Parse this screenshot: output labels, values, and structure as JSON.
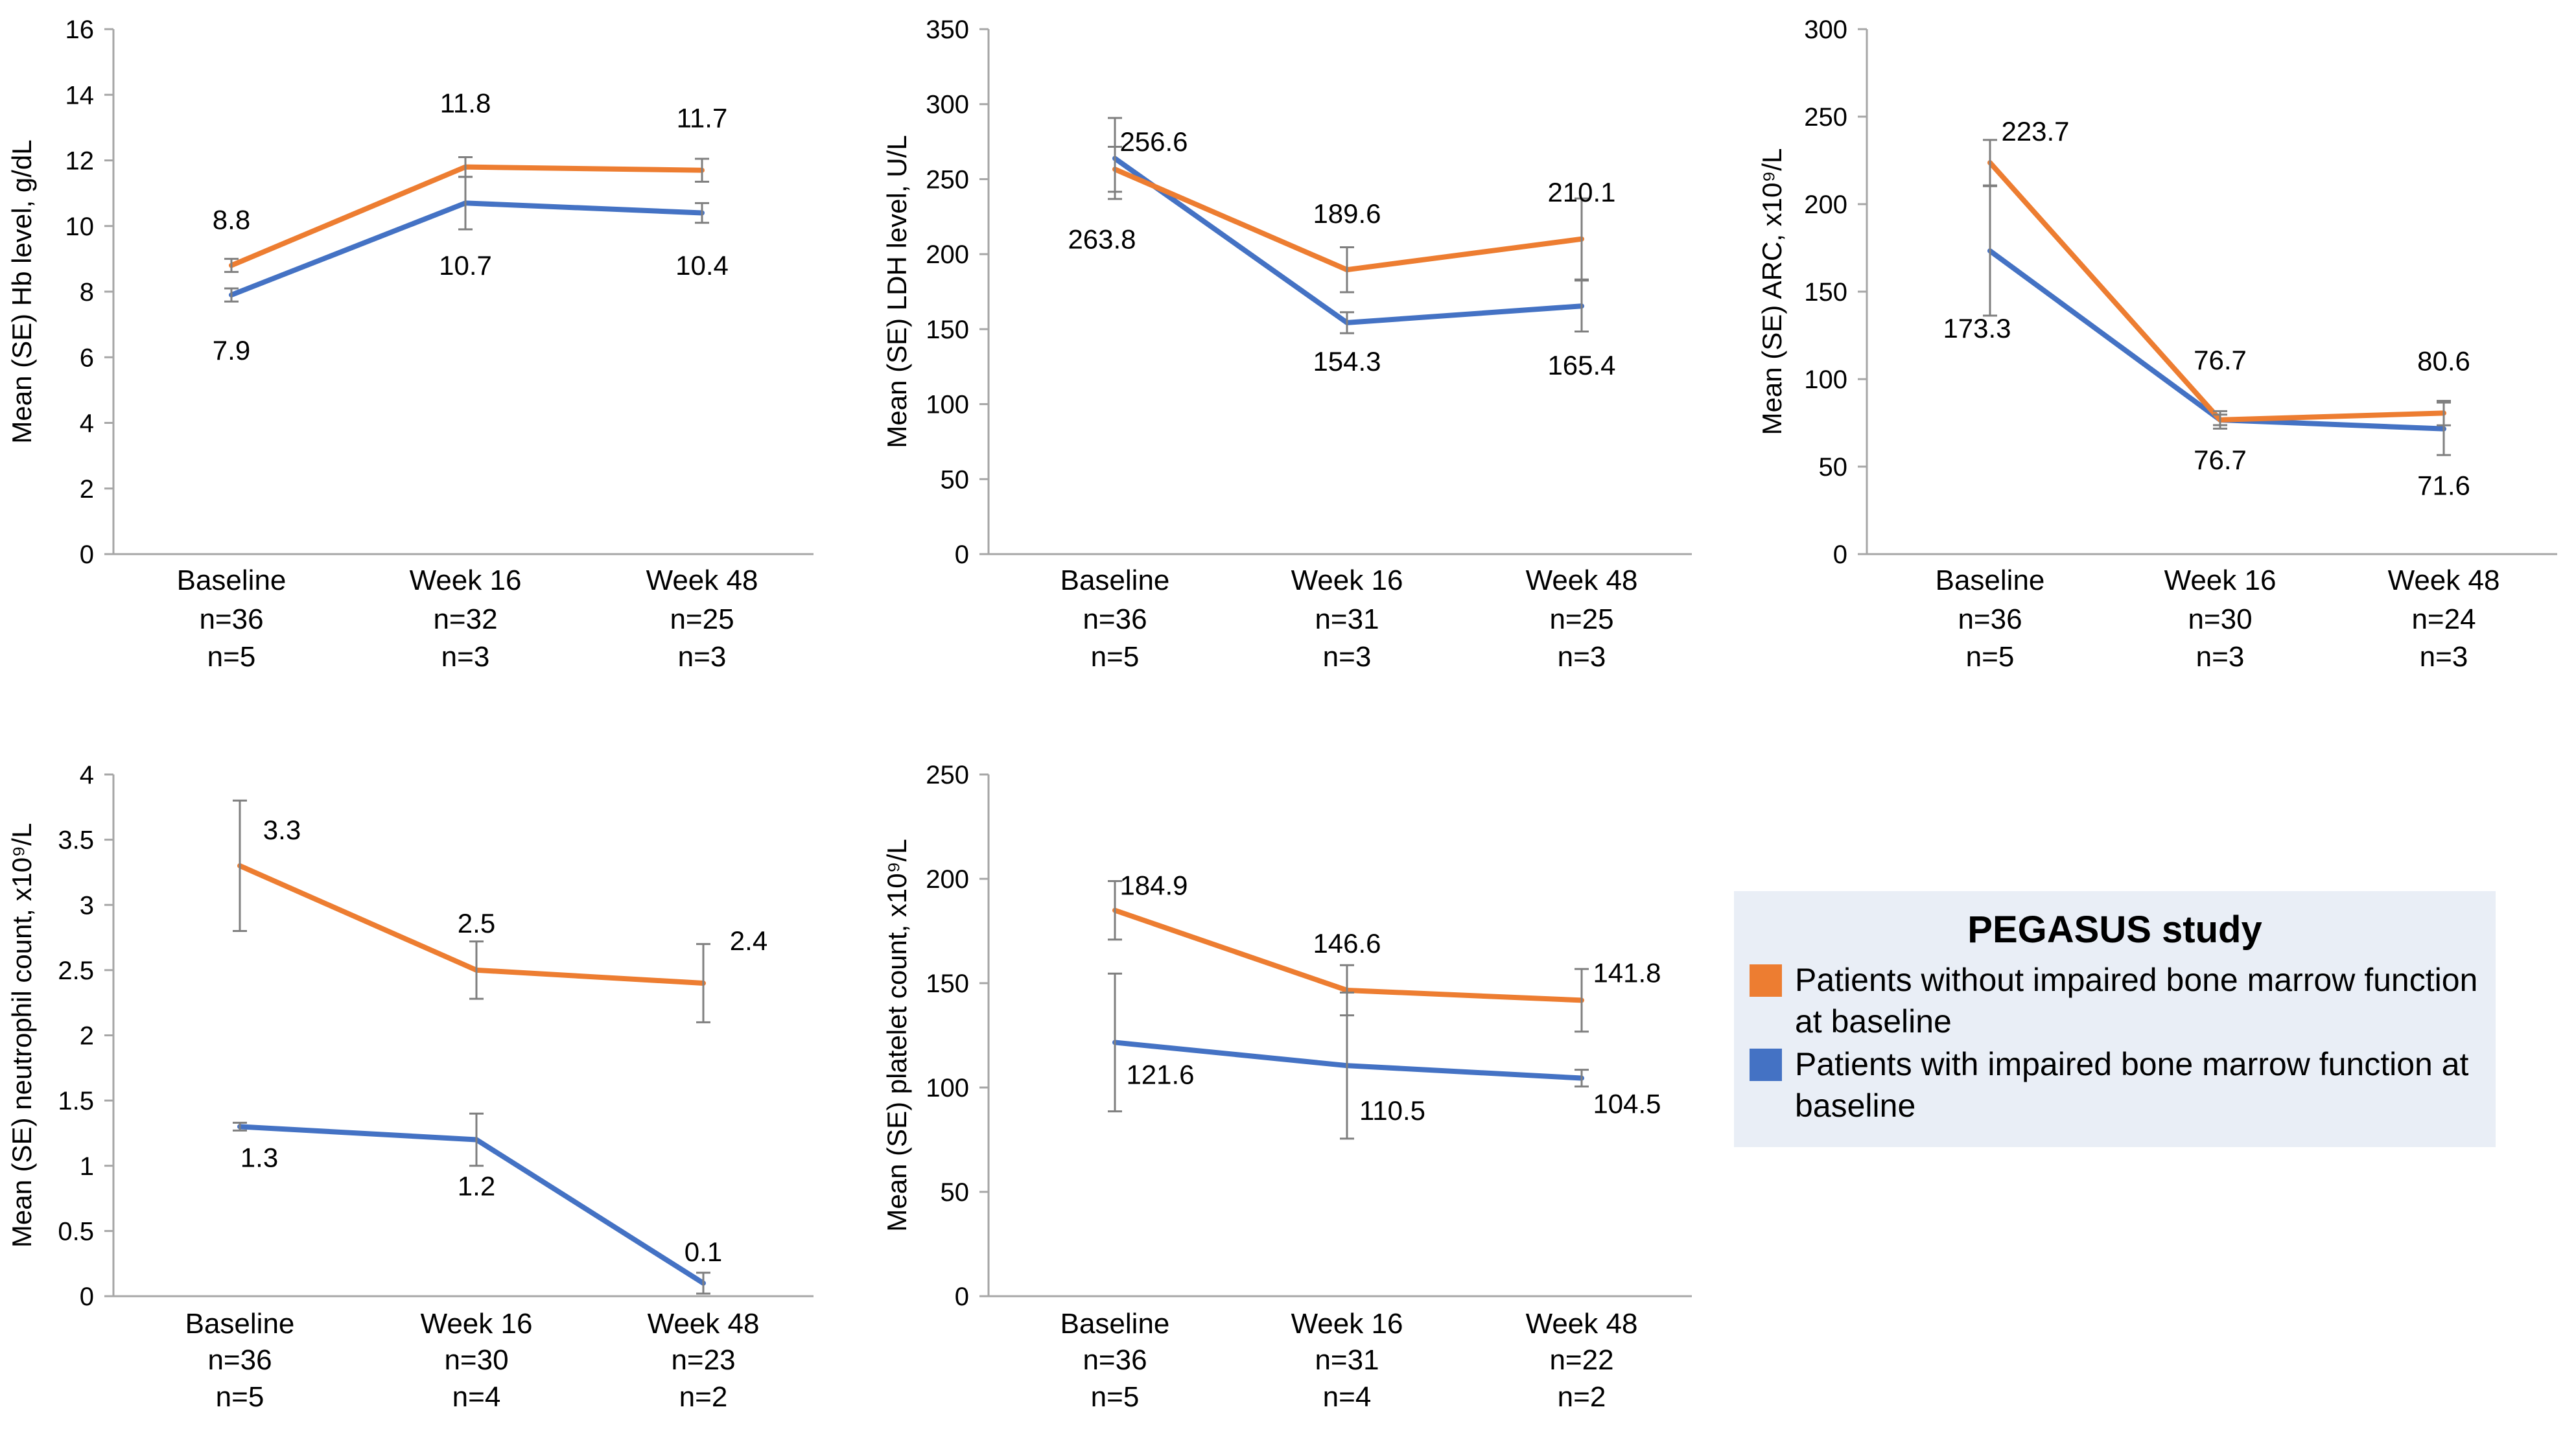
{
  "chart_data": [
    {
      "type": "line",
      "ylabel": "Mean (SE) Hb level, g/dL",
      "ylim": [
        0,
        16
      ],
      "yticks": [
        0,
        2,
        4,
        6,
        8,
        10,
        12,
        14,
        16
      ],
      "categories": [
        "Baseline",
        "Week 16",
        "Week 48"
      ],
      "series": [
        {
          "name": "Patients without impaired bone marrow function at baseline",
          "color": "#ed7d31",
          "values": [
            8.8,
            11.8,
            11.7
          ],
          "se": [
            0.2,
            0.3,
            0.35
          ],
          "labels": [
            "8.8",
            "11.8",
            "11.7"
          ],
          "n": [
            "n=36",
            "n=32",
            "n=25"
          ]
        },
        {
          "name": "Patients with impaired bone marrow function at baseline",
          "color": "#4472c4",
          "values": [
            7.9,
            10.7,
            10.4
          ],
          "se": [
            0.2,
            0.8,
            0.3
          ],
          "labels": [
            "7.9",
            "10.7",
            "10.4"
          ],
          "n": [
            "n=5",
            "n=3",
            "n=3"
          ]
        }
      ]
    },
    {
      "type": "line",
      "ylabel": "Mean (SE) LDH level, U/L",
      "ylim": [
        0,
        350
      ],
      "yticks": [
        0,
        50,
        100,
        150,
        200,
        250,
        300,
        350
      ],
      "categories": [
        "Baseline",
        "Week 16",
        "Week 48"
      ],
      "series": [
        {
          "name": "Patients without impaired bone marrow function at baseline",
          "color": "#ed7d31",
          "values": [
            256.6,
            189.6,
            210.1
          ],
          "se": [
            15,
            15,
            27
          ],
          "labels": [
            "256.6",
            "189.6",
            "210.1"
          ],
          "n": [
            "n=36",
            "n=31",
            "n=25"
          ]
        },
        {
          "name": "Patients with impaired bone marrow function at baseline",
          "color": "#4472c4",
          "values": [
            263.8,
            154.3,
            165.4
          ],
          "se": [
            27,
            7,
            17
          ],
          "labels": [
            "263.8",
            "154.3",
            "165.4"
          ],
          "n": [
            "n=5",
            "n=3",
            "n=3"
          ]
        }
      ]
    },
    {
      "type": "line",
      "ylabel": "Mean (SE) ARC, x10⁹/L",
      "ylim": [
        0,
        300
      ],
      "yticks": [
        0,
        50,
        100,
        150,
        200,
        250,
        300
      ],
      "categories": [
        "Baseline",
        "Week 16",
        "Week 48"
      ],
      "series": [
        {
          "name": "Patients without impaired bone marrow function at baseline",
          "color": "#ed7d31",
          "values": [
            223.7,
            76.7,
            80.6
          ],
          "se": [
            13,
            3,
            7
          ],
          "labels": [
            "223.7",
            "76.7",
            "80.6"
          ],
          "n": [
            "n=36",
            "n=30",
            "n=24"
          ]
        },
        {
          "name": "Patients with impaired bone marrow function at baseline",
          "color": "#4472c4",
          "values": [
            173.3,
            76.7,
            71.6
          ],
          "se": [
            37,
            5,
            15
          ],
          "labels": [
            "173.3",
            "76.7",
            "71.6"
          ],
          "n": [
            "n=5",
            "n=3",
            "n=3"
          ]
        }
      ]
    },
    {
      "type": "line",
      "ylabel": "Mean (SE) neutrophil count, x10⁹/L",
      "ylim": [
        0,
        4
      ],
      "yticks": [
        0,
        0.5,
        1,
        1.5,
        2,
        2.5,
        3,
        3.5,
        4
      ],
      "categories": [
        "Baseline",
        "Week 16",
        "Week 48"
      ],
      "series": [
        {
          "name": "Patients without impaired bone marrow function at baseline",
          "color": "#ed7d31",
          "values": [
            3.3,
            2.5,
            2.4
          ],
          "se": [
            0.5,
            0.22,
            0.3
          ],
          "labels": [
            "3.3",
            "2.5",
            "2.4"
          ],
          "n": [
            "n=36",
            "n=30",
            "n=23"
          ]
        },
        {
          "name": "Patients with impaired bone marrow function at baseline",
          "color": "#4472c4",
          "values": [
            1.3,
            1.2,
            0.1
          ],
          "se": [
            0.03,
            0.2,
            0.08
          ],
          "labels": [
            "1.3",
            "1.2",
            "0.1"
          ],
          "n": [
            "n=5",
            "n=4",
            "n=2"
          ]
        }
      ]
    },
    {
      "type": "line",
      "ylabel": "Mean (SE) platelet count, x10⁹/L",
      "ylim": [
        0,
        250
      ],
      "yticks": [
        0,
        50,
        100,
        150,
        200,
        250
      ],
      "categories": [
        "Baseline",
        "Week 16",
        "Week 48"
      ],
      "series": [
        {
          "name": "Patients without impaired bone marrow function at baseline",
          "color": "#ed7d31",
          "values": [
            184.9,
            146.6,
            141.8
          ],
          "se": [
            14,
            12,
            15
          ],
          "labels": [
            "184.9",
            "146.6",
            "141.8"
          ],
          "n": [
            "n=36",
            "n=31",
            "n=22"
          ]
        },
        {
          "name": "Patients with impaired bone marrow function at baseline",
          "color": "#4472c4",
          "values": [
            121.6,
            110.5,
            104.5
          ],
          "se": [
            33,
            35,
            4
          ],
          "labels": [
            "121.6",
            "110.5",
            "104.5"
          ],
          "n": [
            "n=5",
            "n=4",
            "n=2"
          ]
        }
      ]
    }
  ],
  "legend": {
    "title": "PEGASUS study",
    "items": [
      {
        "label": "Patients without impaired bone marrow function at baseline",
        "color": "#ed7d31"
      },
      {
        "label": "Patients with impaired bone marrow function at baseline",
        "color": "#4472c4"
      }
    ]
  }
}
